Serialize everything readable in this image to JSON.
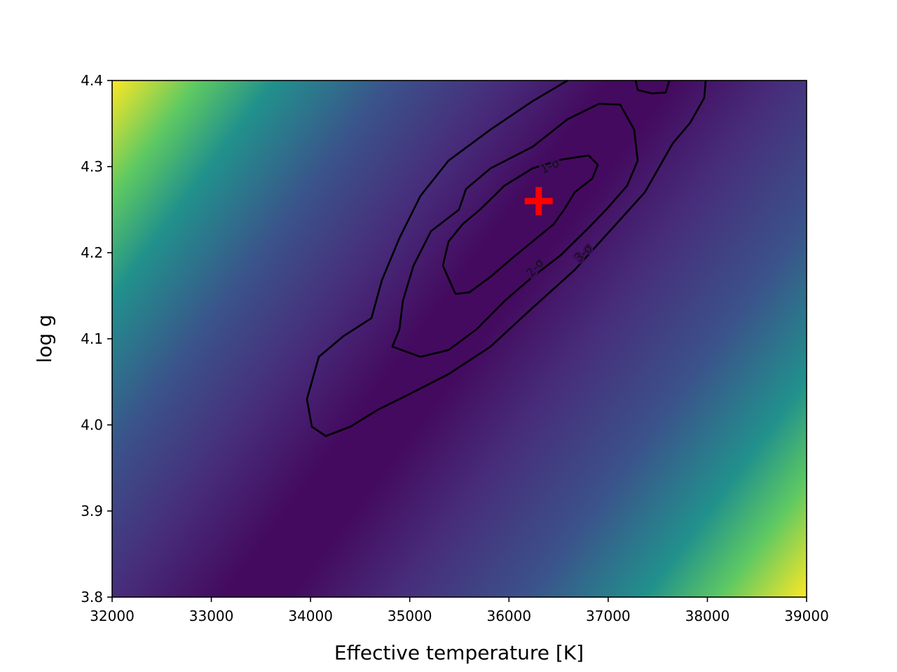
{
  "chart_data": {
    "type": "contour",
    "xlabel": "Effective temperature [K]",
    "ylabel": "log g",
    "xlim": [
      32000,
      39000
    ],
    "ylim": [
      3.8,
      4.4
    ],
    "xticks": [
      32000,
      33000,
      34000,
      35000,
      36000,
      37000,
      38000,
      39000
    ],
    "yticks": [
      3.8,
      3.9,
      {
        "value": 4,
        "label": "4.0"
      },
      4.1,
      4.2,
      4.3,
      4.4
    ],
    "contour_color": "#000000",
    "contours": [
      {
        "label": "1-σ",
        "x": [
          35461,
          35334,
          35391,
          35532,
          35708,
          35956,
          36238,
          36521,
          36803,
          36895,
          36839,
          36662,
          36556,
          36450,
          36238,
          36026,
          35814,
          35602,
          35461
        ],
        "y": [
          4.152,
          4.185,
          4.213,
          4.233,
          4.25,
          4.278,
          4.298,
          4.308,
          4.313,
          4.302,
          4.286,
          4.27,
          4.25,
          4.233,
          4.213,
          4.193,
          4.172,
          4.154,
          4.152
        ]
      },
      {
        "label": "2-σ",
        "x": [
          35108,
          34825,
          34896,
          34931,
          35037,
          35214,
          35496,
          35567,
          35814,
          36238,
          36591,
          36909,
          37121,
          37262,
          37298,
          37192,
          36980,
          36803,
          36521,
          36238,
          35956,
          35673,
          35391,
          35108
        ],
        "y": [
          4.079,
          4.091,
          4.111,
          4.144,
          4.185,
          4.225,
          4.25,
          4.274,
          4.298,
          4.323,
          4.355,
          4.373,
          4.372,
          4.343,
          4.307,
          4.278,
          4.25,
          4.229,
          4.197,
          4.172,
          4.144,
          4.111,
          4.087,
          4.079
        ]
      },
      {
        "label": "3-σ",
        "x": [
          36591,
          36238,
          35814,
          35391,
          35108,
          34896,
          34719,
          34614,
          34331,
          34084,
          33964,
          34013,
          34154,
          34402,
          34684,
          34967,
          35391,
          35814,
          36238,
          36662,
          37015,
          37368,
          37651,
          37827,
          37969,
          37983,
          null,
          37277,
          37298,
          37439,
          37580,
          37616
        ],
        "y": [
          4.4,
          4.376,
          4.343,
          4.307,
          4.266,
          4.217,
          4.168,
          4.124,
          4.103,
          4.079,
          4.03,
          3.998,
          3.987,
          3.998,
          4.018,
          4.034,
          4.059,
          4.091,
          4.136,
          4.18,
          4.225,
          4.27,
          4.327,
          4.351,
          4.38,
          4.4,
          null,
          4.4,
          4.389,
          4.385,
          4.386,
          4.4
        ]
      }
    ],
    "best_fit": {
      "x": 36300,
      "y": 4.26,
      "color": "#ff0000"
    }
  }
}
